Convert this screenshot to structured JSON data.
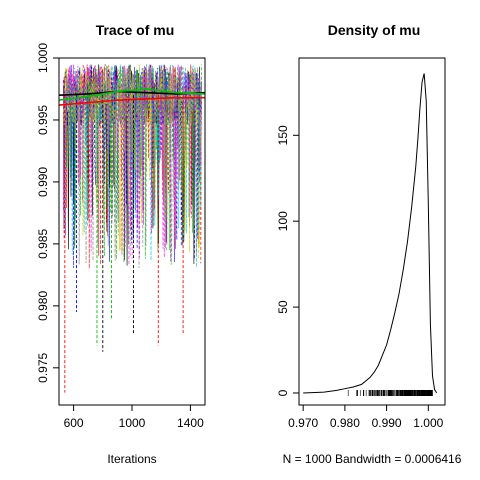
{
  "chart_data": [
    {
      "type": "line",
      "title": "Trace of mu",
      "xlabel": "Iterations",
      "ylabel": "",
      "xlim": [
        500,
        1500
      ],
      "ylim": [
        0.972,
        1.0
      ],
      "x_ticks": [
        "600",
        "1000",
        "1400"
      ],
      "y_ticks": [
        "0.975",
        "0.980",
        "0.985",
        "0.990",
        "0.995",
        "1.000"
      ],
      "chain_colors": [
        "#000000",
        "#ff0000",
        "#00c000",
        "#0000ff",
        "#00cccc",
        "#ff00ff",
        "#cccc00",
        "#808080"
      ],
      "center": 0.997,
      "smooth_lines": [
        {
          "color": "#000000",
          "values": [
            0.997,
            0.9971,
            0.9973,
            0.9972,
            0.9971,
            0.9972
          ]
        },
        {
          "color": "#ff0000",
          "values": [
            0.9962,
            0.9964,
            0.9966,
            0.9967,
            0.9968,
            0.9968
          ]
        },
        {
          "color": "#00c000",
          "values": [
            0.9966,
            0.9969,
            0.9973,
            0.9975,
            0.9972,
            0.9971
          ]
        }
      ],
      "smooth_x": [
        500,
        700,
        900,
        1100,
        1300,
        1500
      ],
      "notable_dips": [
        {
          "x": 540,
          "value": 0.973,
          "color": "#ff0000"
        },
        {
          "x": 760,
          "value": 0.9768,
          "color": "#00c000"
        },
        {
          "x": 800,
          "value": 0.9763,
          "color": "#000000"
        },
        {
          "x": 1010,
          "value": 0.9778,
          "color": "#000000"
        },
        {
          "x": 1180,
          "value": 0.9768,
          "color": "#ff0000"
        },
        {
          "x": 1350,
          "value": 0.9778,
          "color": "#ff0000"
        },
        {
          "x": 860,
          "value": 0.979,
          "color": "#00c000"
        },
        {
          "x": 620,
          "value": 0.9795,
          "color": "#0000ff"
        }
      ]
    },
    {
      "type": "line",
      "title": "Density of mu",
      "xlabel": "N = 1000   Bandwidth = 0.0006416",
      "ylabel": "",
      "xlim": [
        0.969,
        1.004
      ],
      "ylim": [
        -7,
        195
      ],
      "x_ticks": [
        "0.970",
        "0.980",
        "0.990",
        "1.000"
      ],
      "y_ticks": [
        "0",
        "50",
        "100",
        "150"
      ],
      "x": [
        0.97,
        0.975,
        0.978,
        0.98,
        0.982,
        0.984,
        0.985,
        0.986,
        0.987,
        0.988,
        0.989,
        0.99,
        0.991,
        0.992,
        0.993,
        0.994,
        0.995,
        0.996,
        0.997,
        0.9975,
        0.998,
        0.9985,
        0.999,
        0.9995,
        1.0,
        1.0005,
        1.001,
        1.0015,
        1.002
      ],
      "values": [
        0,
        0.5,
        1.5,
        2.5,
        3.5,
        5,
        7,
        9,
        12,
        16,
        22,
        28,
        37,
        47,
        58,
        72,
        88,
        108,
        132,
        148,
        166,
        181,
        186,
        170,
        110,
        40,
        10,
        2,
        0
      ],
      "rug_range": [
        0.977,
        1.001
      ]
    }
  ]
}
